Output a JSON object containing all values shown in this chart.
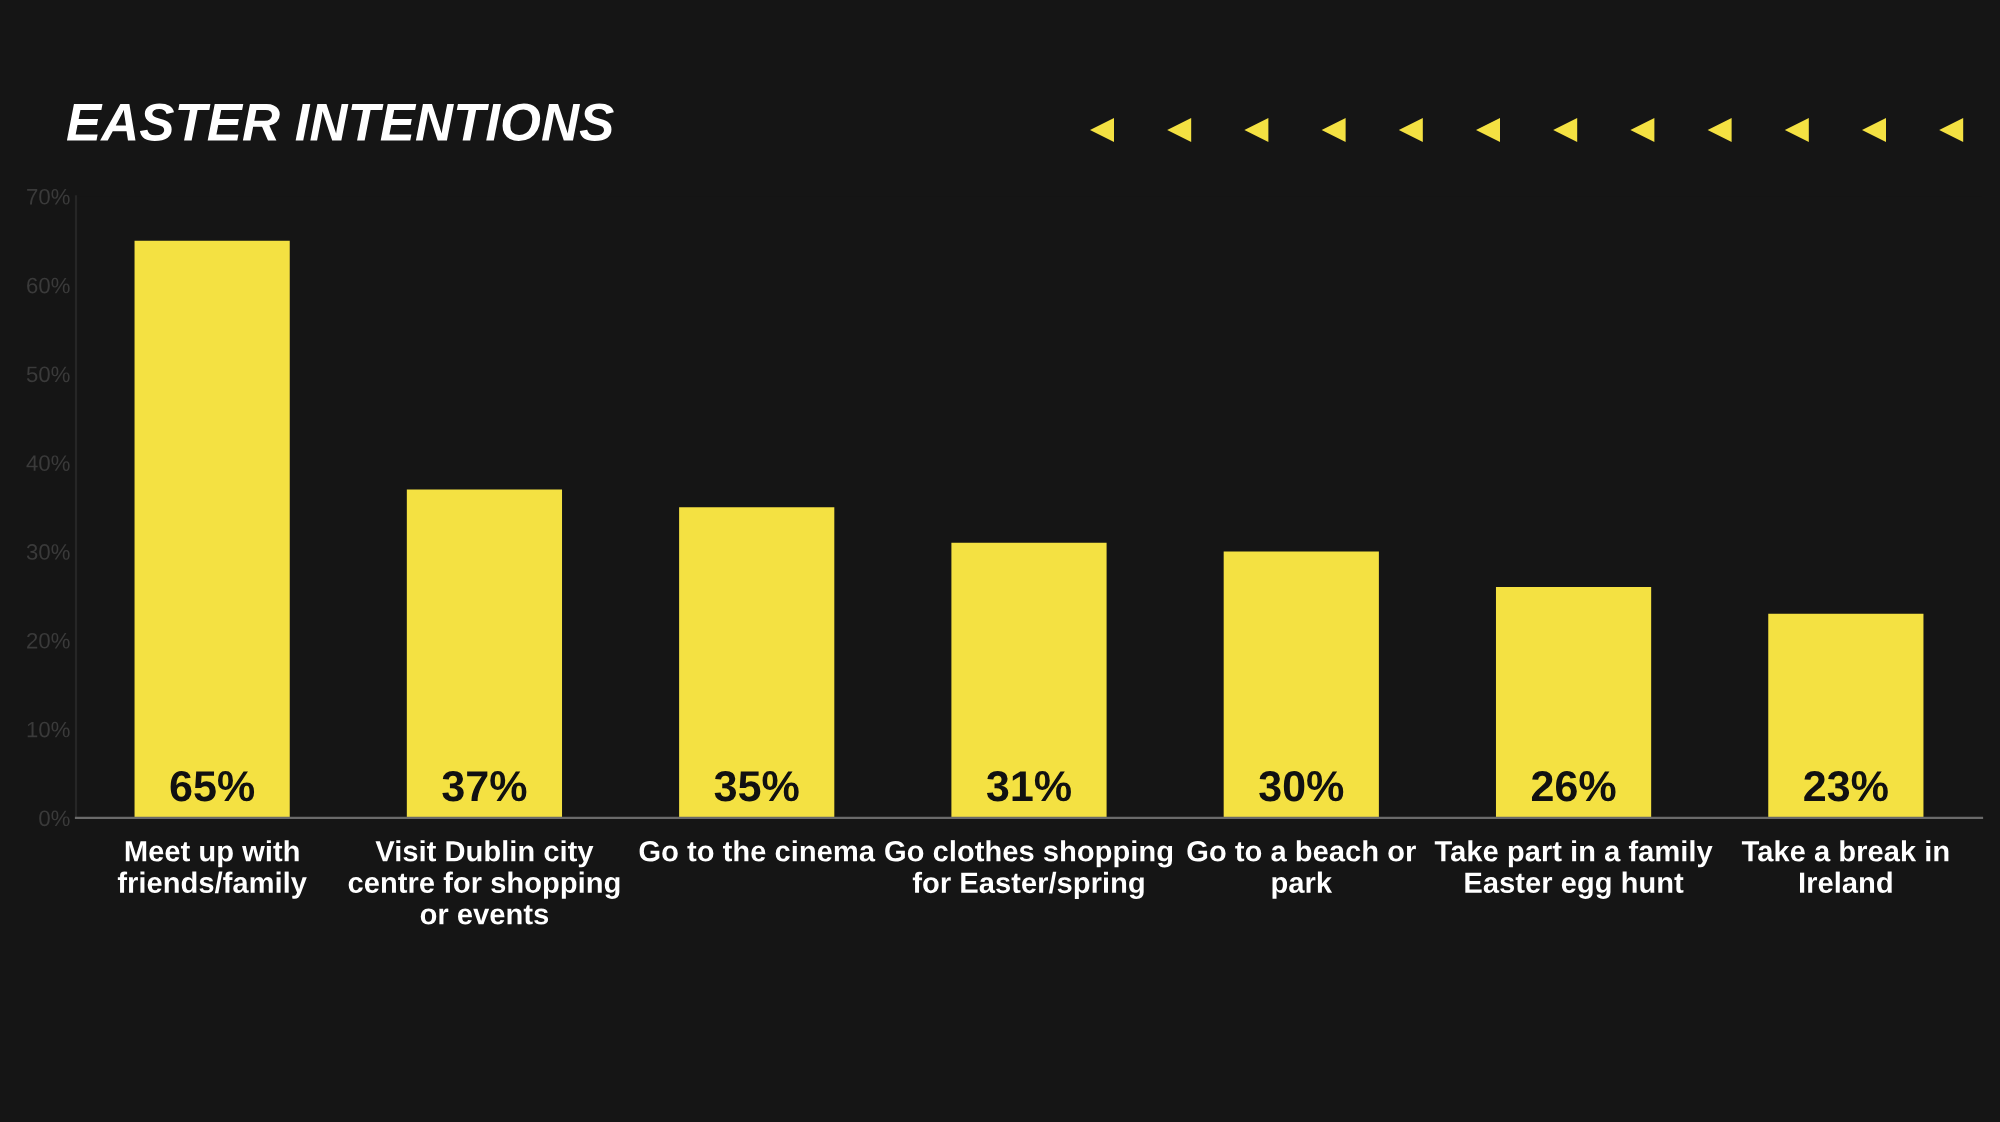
{
  "chart_data": {
    "type": "bar",
    "title": "EASTER INTENTIONS",
    "categories": [
      "Meet up with\nfriends/family",
      "Visit Dublin city\ncentre for shopping\nor events",
      "Go to the cinema",
      "Go clothes shopping\nfor Easter/spring",
      "Go to a beach or\npark",
      "Take part in a family\nEaster egg hunt",
      "Take a break in\nIreland"
    ],
    "values": [
      65,
      37,
      35,
      31,
      30,
      26,
      23
    ],
    "value_labels": [
      "65%",
      "37%",
      "35%",
      "31%",
      "30%",
      "26%",
      "23%"
    ],
    "color": "#f4e142",
    "ylim": [
      0,
      70
    ],
    "yticks": [
      {
        "value": 0,
        "label": "0%"
      },
      {
        "value": 10,
        "label": "10%"
      },
      {
        "value": 20,
        "label": "20%"
      },
      {
        "value": 30,
        "label": "30%"
      },
      {
        "value": 40,
        "label": "40%"
      },
      {
        "value": 50,
        "label": "50%"
      },
      {
        "value": 60,
        "label": "60%"
      },
      {
        "value": 70,
        "label": "70%"
      }
    ],
    "grid": false,
    "legend": false
  }
}
